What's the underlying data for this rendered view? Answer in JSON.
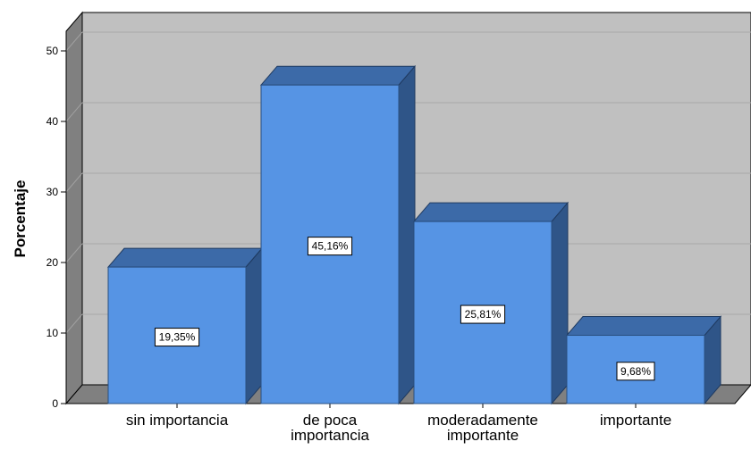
{
  "chart_data": {
    "type": "bar",
    "categories": [
      "sin importancia",
      "de poca importancia",
      "moderadamente importante",
      "importante"
    ],
    "category_lines": [
      [
        "sin importancia"
      ],
      [
        "de poca",
        "importancia"
      ],
      [
        "moderadamente",
        "importante"
      ],
      [
        "importante"
      ]
    ],
    "values": [
      19.35,
      45.16,
      25.81,
      9.68
    ],
    "data_labels": [
      "19,35%",
      "45,16%",
      "25,81%",
      "9,68%"
    ],
    "ylabel": "Porcentaje",
    "ylim": [
      0,
      50
    ],
    "yticks": [
      0,
      10,
      20,
      30,
      40,
      50
    ],
    "grid": true,
    "style": "3d",
    "colors": {
      "bar_front": "#5694e4",
      "bar_top": "#3c6aa8",
      "bar_side": "#2f5588",
      "wall": "#c0c0c0",
      "floor": "#808080",
      "side_wall": "#808080",
      "gridline": "#a8a8a8"
    }
  }
}
